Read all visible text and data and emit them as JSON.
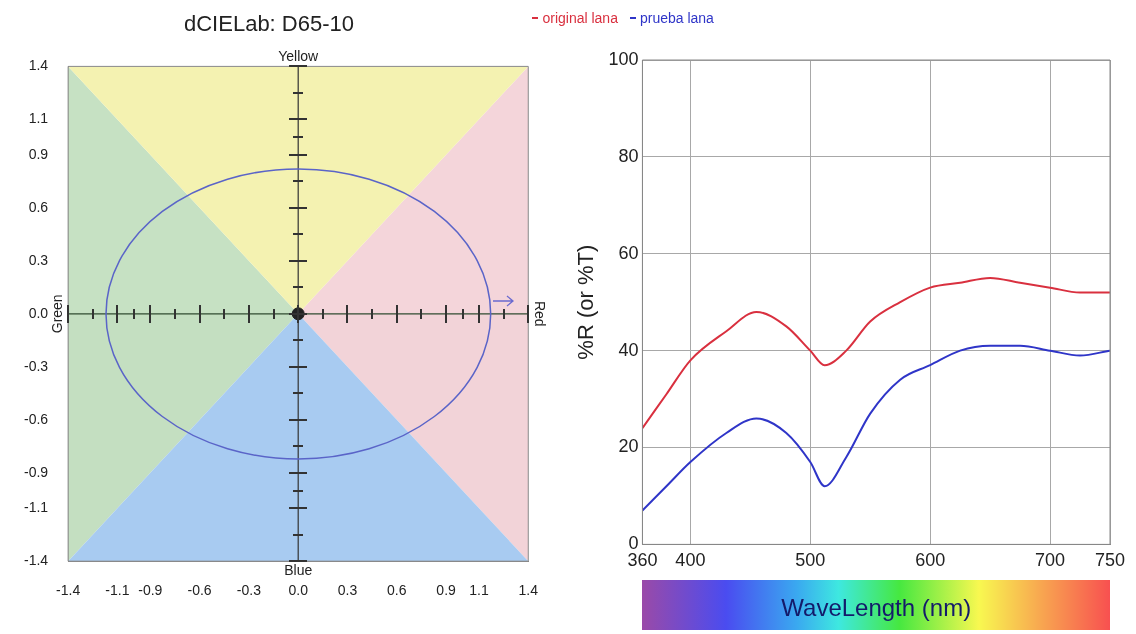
{
  "chart_data": [
    {
      "type": "scatter",
      "title": "dCIELab: D65-10",
      "annotations": [
        "Yellow",
        "Blue",
        "Green",
        "Red"
      ],
      "xlim": [
        -1.4,
        1.4
      ],
      "ylim": [
        -1.4,
        1.4
      ],
      "xticks": [
        {
          "value": -1.4,
          "label": "-1.4"
        },
        {
          "value": -1.1,
          "label": "-1.1"
        },
        {
          "value": -0.9,
          "label": "-0.9"
        },
        {
          "value": -0.6,
          "label": "-0.6"
        },
        {
          "value": -0.3,
          "label": "-0.3"
        },
        {
          "value": 0,
          "label": "0.0"
        },
        {
          "value": 0.3,
          "label": "0.3"
        },
        {
          "value": 0.6,
          "label": "0.6"
        },
        {
          "value": 0.9,
          "label": "0.9"
        },
        {
          "value": 1.1,
          "label": "1.1"
        },
        {
          "value": 1.4,
          "label": "1.4"
        }
      ],
      "yticks": [
        {
          "value": -1.4,
          "label": "-1.4"
        },
        {
          "value": -1.1,
          "label": "-1.1"
        },
        {
          "value": -0.9,
          "label": "-0.9"
        },
        {
          "value": -0.6,
          "label": "-0.6"
        },
        {
          "value": -0.3,
          "label": "-0.3"
        },
        {
          "value": 0,
          "label": "0.0"
        },
        {
          "value": 0.3,
          "label": "0.3"
        },
        {
          "value": 0.6,
          "label": "0.6"
        },
        {
          "value": 0.9,
          "label": "0.9"
        },
        {
          "value": 1.1,
          "label": "1.1"
        },
        {
          "value": 1.4,
          "label": "1.4"
        }
      ],
      "grid": false,
      "ref_lines": [
        {
          "axis": "x",
          "value": 0,
          "color": "#333333"
        },
        {
          "axis": "y",
          "value": 0,
          "color": "#2e4a2e"
        }
      ],
      "series": [
        {
          "type": "area",
          "color": "#f4f2b1",
          "x": [
            -1.4,
            0,
            1.4
          ],
          "values": [
            1.4,
            0,
            1.4
          ]
        },
        {
          "type": "area",
          "color": "#a8cbf1",
          "x": [
            -1.4,
            0,
            1.4
          ],
          "values": [
            -1.4,
            0,
            -1.4
          ]
        },
        {
          "type": "area",
          "color": "#c6e1c3",
          "x": [
            -1.4,
            0
          ],
          "values": [
            1.4,
            0
          ]
        },
        {
          "type": "area",
          "color": "#c4dfc1",
          "x": [
            -1.4,
            0
          ],
          "values": [
            -1.4,
            0
          ]
        },
        {
          "type": "area",
          "color": "#f4d5da",
          "x": [
            0,
            1.4
          ],
          "values": [
            0,
            1.4
          ]
        },
        {
          "type": "area",
          "color": "#f2d3d8",
          "x": [
            0,
            1.4
          ],
          "values": [
            0,
            -1.4
          ]
        },
        {
          "color": "#222222",
          "marker": "circle",
          "x": [
            0
          ],
          "values": [
            0
          ]
        }
      ]
    },
    {
      "type": "line",
      "xlabel": "WaveLength (nm)",
      "ylabel": "%R (or %T)",
      "legend": "top",
      "x": [
        360,
        380,
        400,
        430,
        455,
        480,
        500,
        512,
        530,
        550,
        575,
        600,
        625,
        650,
        675,
        700,
        725,
        750
      ],
      "xlim": [
        360,
        750
      ],
      "xticks": [
        360,
        400,
        500,
        600,
        700,
        750
      ],
      "ylim": [
        0,
        100
      ],
      "yticks": [
        0,
        20,
        40,
        60,
        80,
        100
      ],
      "grid": true,
      "series": [
        {
          "name": "original lana",
          "color": "#d9303f",
          "values": [
            24,
            31,
            38,
            44,
            48,
            45,
            40,
            37,
            40,
            46,
            50,
            53,
            54,
            55,
            54,
            53,
            52,
            52
          ]
        },
        {
          "name": "prueba lana",
          "color": "#2f35c8",
          "values": [
            7,
            12,
            17,
            23,
            26,
            23,
            17,
            12,
            18,
            27,
            34,
            37,
            40,
            41,
            41,
            40,
            39,
            40
          ]
        }
      ]
    }
  ]
}
